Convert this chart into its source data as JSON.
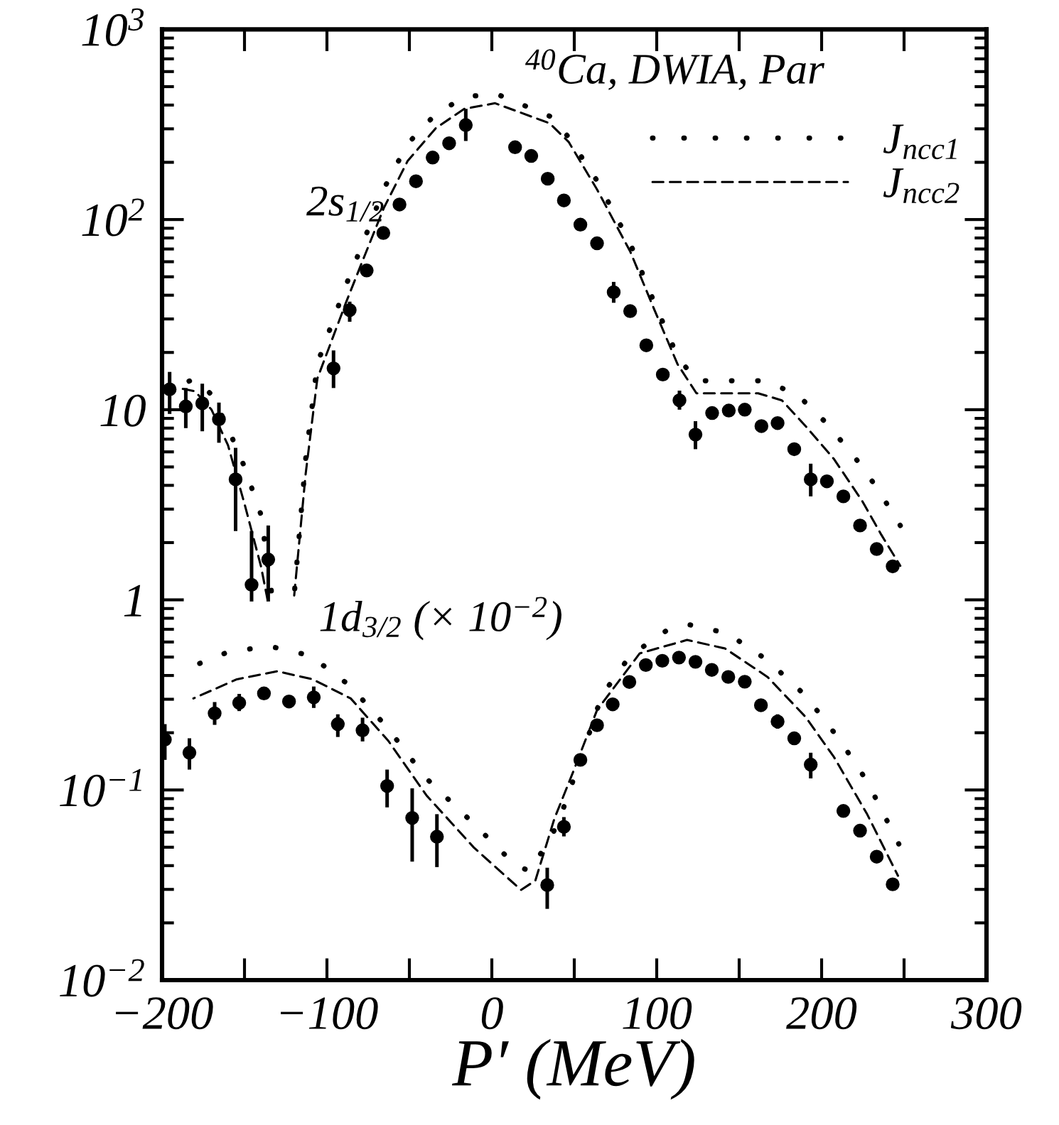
{
  "chart_data": {
    "type": "scatter",
    "xlabel": "P′ (MeV)",
    "annotations": [
      "$^{40}$Ca, DWIA, Par",
      "2s$_{1/2}$",
      "1d$_{3/2}$ (× 10$^{−2}$)"
    ],
    "log": "y",
    "xlim": [
      -200,
      300
    ],
    "ylim": [
      0.01,
      1000
    ],
    "xticks": [
      -200,
      {
        "value": -150,
        "label": null
      },
      -100,
      {
        "value": -50,
        "label": null
      },
      0,
      {
        "value": 50,
        "label": null
      },
      100,
      {
        "value": 150,
        "label": null
      },
      200,
      {
        "value": 250,
        "label": null
      },
      300
    ],
    "yticks": [
      {
        "value": 0.01,
        "label": "10$^{−2}$"
      },
      {
        "value": 0.1,
        "label": "10$^{−1}$"
      },
      1,
      10,
      {
        "value": 100,
        "label": "10$^{2}$"
      },
      {
        "value": 1000,
        "label": "10$^{3}$"
      }
    ],
    "grid": false,
    "legend": "top right",
    "series": [
      {
        "type": "scatter",
        "color": "#000000",
        "marker": "circle",
        "x": [
          -195.4,
          -185.6,
          -175.6,
          -165.5,
          -155.4,
          -145.7,
          -135.6,
          -96.0,
          -86.2,
          -75.9,
          -65.8,
          -56.0,
          -46.0,
          -35.9,
          -25.9,
          -15.8,
          14.1,
          23.9,
          33.9,
          43.7,
          53.7,
          63.8,
          73.9,
          83.9,
          93.7,
          103.7,
          113.8,
          123.5,
          133.6,
          143.7,
          153.4,
          163.5,
          173.3,
          183.4,
          193.4,
          203.2,
          213.2,
          223.3,
          233.4,
          243.1
        ],
        "values": [
          12.8,
          10.4,
          10.8,
          8.9,
          4.3,
          1.2,
          1.63,
          16.5,
          33.4,
          54,
          85,
          120,
          159,
          212,
          252,
          314,
          240,
          216,
          164,
          126,
          94,
          75,
          41.5,
          33,
          21.8,
          15.3,
          11.2,
          7.4,
          9.6,
          9.9,
          10.0,
          8.2,
          8.5,
          6.2,
          4.3,
          4.2,
          3.5,
          2.46,
          1.85,
          1.5
        ],
        "errors": [
          [
            9.5,
            15.8
          ],
          [
            8.0,
            13.0
          ],
          [
            7.7,
            13.7
          ],
          [
            6.7,
            10.9
          ],
          [
            2.3,
            6.3
          ],
          [
            0.98,
            2.3
          ],
          [
            0.98,
            2.46
          ],
          [
            13.0,
            20.5
          ],
          [
            29,
            37
          ],
          null,
          null,
          null,
          null,
          null,
          null,
          [
            259,
            382
          ],
          null,
          null,
          null,
          null,
          null,
          null,
          [
            36.5,
            47
          ],
          null,
          null,
          null,
          [
            10,
            12.6
          ],
          [
            6.2,
            8.7
          ],
          null,
          null,
          null,
          null,
          null,
          null,
          [
            3.5,
            5.2
          ],
          null,
          null,
          null,
          null,
          null
        ]
      },
      {
        "type": "scatter",
        "color": "#000000",
        "marker": "circle",
        "x": [
          -198.3,
          -183.4,
          -168.1,
          -153.2,
          -138.2,
          -123.0,
          -108.0,
          -93.4,
          -78.4,
          -63.5,
          -48.3,
          -33.3,
          33.6,
          43.7,
          53.7,
          63.8,
          73.3,
          83.4,
          93.4,
          103.4,
          113.5,
          123.5,
          133.4,
          143.4,
          153.4,
          163.2,
          173.3,
          183.4,
          193.4,
          213.2,
          223.3,
          233.4,
          243.1
        ],
        "values": [
          0.184,
          0.157,
          0.253,
          0.287,
          0.322,
          0.292,
          0.307,
          0.222,
          0.206,
          0.105,
          0.0713,
          0.0568,
          0.0316,
          0.064,
          0.144,
          0.219,
          0.282,
          0.37,
          0.454,
          0.478,
          0.497,
          0.472,
          0.428,
          0.393,
          0.371,
          0.279,
          0.229,
          0.187,
          0.136,
          0.0776,
          0.0611,
          0.0446,
          0.0319
        ],
        "errors": [
          [
            0.144,
            0.222
          ],
          [
            0.128,
            0.187
          ],
          [
            0.22,
            0.29
          ],
          [
            0.26,
            0.32
          ],
          null,
          null,
          [
            0.27,
            0.35
          ],
          [
            0.19,
            0.25
          ],
          [
            0.18,
            0.24
          ],
          [
            0.081,
            0.128
          ],
          [
            0.042,
            0.102
          ],
          [
            0.0393,
            0.0746
          ],
          [
            0.0237,
            0.039
          ],
          [
            0.057,
            0.072
          ],
          null,
          null,
          null,
          null,
          null,
          null,
          null,
          null,
          null,
          null,
          null,
          null,
          [
            0.21,
            0.25
          ],
          null,
          [
            0.115,
            0.157
          ],
          null,
          null,
          null,
          null
        ]
      },
      {
        "type": "line",
        "name": "J$_{ncc1}$",
        "color": "#000000",
        "line_style": "dotted",
        "x": [
          -190,
          -180,
          -170,
          -160,
          -150,
          -140,
          -133,
          -125,
          -120.1,
          -112.9,
          -105.8,
          -97.2,
          -88.5,
          -77,
          -65.5,
          -51.1,
          -33.9,
          -16.7,
          2,
          35,
          46.6,
          63.8,
          83.9,
          98.3,
          112.7,
          124.1,
          163.5,
          184.5,
          201.7,
          219,
          233.4,
          247.7
        ],
        "values": [
          13.5,
          14.5,
          12,
          8,
          5,
          2.8,
          1.0,
          null,
          1.0,
          5.5,
          17.5,
          28,
          45,
          80,
          145,
          250,
          360,
          440,
          461,
          350,
          271,
          160,
          75,
          37,
          19,
          14.2,
          14.2,
          12.2,
          8.7,
          5.8,
          3.9,
          2.46
        ]
      },
      {
        "type": "line",
        "name": "J$_{ncc2}$",
        "color": "#000000",
        "line_style": "dashed",
        "x": [
          -190,
          -180,
          -170,
          -160,
          -150,
          -140,
          -136,
          -125,
          -120.1,
          -112.9,
          -105.8,
          -97.2,
          -88.5,
          -77,
          -65.5,
          -51.1,
          -33.9,
          -16.7,
          2,
          35,
          46.6,
          63.8,
          83.9,
          98.3,
          112.7,
          124.1,
          161.5,
          175.9,
          190.3,
          207.5,
          224.7,
          236.2,
          247.7
        ],
        "values": [
          13,
          12.5,
          10,
          6.5,
          3.2,
          1.5,
          1.0,
          null,
          1.0,
          4.6,
          14.6,
          23,
          36.5,
          65,
          115,
          203,
          303,
          382,
          409,
          321,
          256,
          144,
          68,
          34,
          17.3,
          12.2,
          12.2,
          11.2,
          8.2,
          5.5,
          3.3,
          2.2,
          1.51
        ]
      },
      {
        "type": "line",
        "color": "#000000",
        "line_style": "dotted",
        "x": [
          -181,
          -160.3,
          -135.1,
          -110.1,
          -85.6,
          -62.7,
          -39.7,
          -11,
          14.9,
          23.5,
          40,
          55.2,
          66.6,
          83.9,
          106.9,
          119.8,
          142.8,
          167.2,
          190.3,
          210.3,
          227.6,
          246.8
        ],
        "values": [
          0.449,
          0.53,
          0.571,
          0.509,
          0.351,
          0.209,
          0.115,
          0.0665,
          0.0397,
          0.0375,
          0.066,
          0.157,
          0.313,
          0.509,
          0.698,
          0.74,
          0.667,
          0.481,
          0.313,
          0.187,
          0.111,
          0.052
        ]
      },
      {
        "type": "line",
        "color": "#000000",
        "line_style": "dashed",
        "x": [
          -181,
          -154.6,
          -130.2,
          -108.6,
          -85.6,
          -62.7,
          -39.7,
          -11,
          17.7,
          26.4,
          37.9,
          49.4,
          63.8,
          89.7,
          118.4,
          141.4,
          167.2,
          190.3,
          207.5,
          227.6,
          246.3
        ],
        "values": [
          0.303,
          0.382,
          0.421,
          0.382,
          0.303,
          0.181,
          0.0938,
          0.0499,
          0.0298,
          0.0334,
          0.0705,
          0.125,
          0.263,
          0.523,
          0.615,
          0.555,
          0.393,
          0.242,
          0.149,
          0.0746,
          0.0354
        ]
      }
    ]
  }
}
